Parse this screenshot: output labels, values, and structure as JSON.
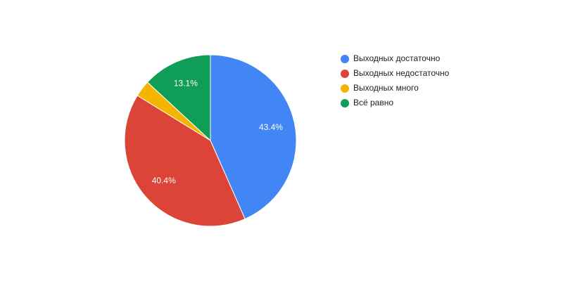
{
  "chart_data": {
    "type": "pie",
    "categories": [
      "Выходных достаточно",
      "Выходных недостаточно",
      "Выходных много",
      "Всё равно"
    ],
    "values": [
      43.4,
      40.4,
      3.1,
      13.1
    ],
    "value_labels": [
      "43.4%",
      "40.4%",
      null,
      "13.1%"
    ],
    "colors": [
      "#4285f4",
      "#db4437",
      "#f4b400",
      "#0f9d58"
    ],
    "legend": "right"
  }
}
